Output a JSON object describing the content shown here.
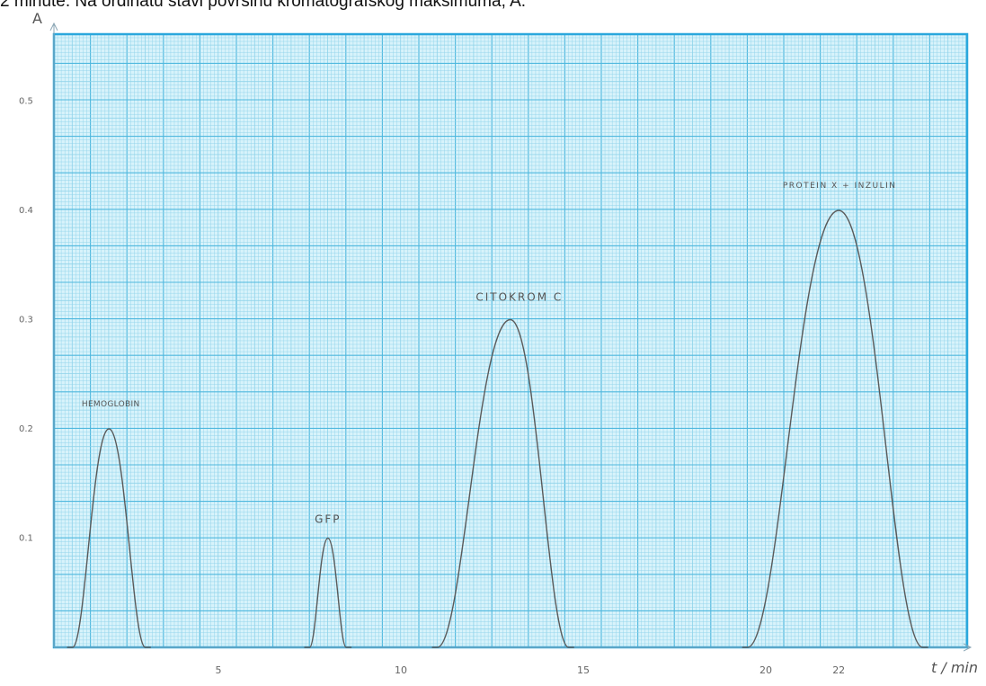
{
  "caption": "2 minute. Na ordinatu stavi površinu kromatografskog maksimuma, A.",
  "colors": {
    "paper": "#d8f3fb",
    "grid_minor": "#8fd3ea",
    "grid_major": "#4fb8de",
    "frame": "#2aa7dc",
    "curve": "#5a5a5a",
    "text": "#555555"
  },
  "chart_data": {
    "type": "line",
    "title": "",
    "xlabel": "t / min",
    "ylabel": "A",
    "xlim": [
      0,
      25
    ],
    "ylim": [
      0,
      0.6
    ],
    "grid": true,
    "x_ticks": [
      {
        "value": 5,
        "label": "5"
      },
      {
        "value": 10,
        "label": "10"
      },
      {
        "value": 15,
        "label": "15"
      },
      {
        "value": 20,
        "label": "20"
      },
      {
        "value": 22,
        "label": "22"
      }
    ],
    "y_ticks": [
      {
        "value": 0.1,
        "label": "0.1"
      },
      {
        "value": 0.2,
        "label": "0.2"
      },
      {
        "value": 0.3,
        "label": "0.3"
      },
      {
        "value": 0.4,
        "label": "0.4"
      },
      {
        "value": 0.5,
        "label": "0.5"
      }
    ],
    "peaks": [
      {
        "label": "HEMOGLOBIN",
        "start": 1.0,
        "apex": 2.0,
        "end": 3.0,
        "height": 0.2
      },
      {
        "label": "GFP",
        "start": 7.5,
        "apex": 8.0,
        "end": 8.5,
        "height": 0.1
      },
      {
        "label": "CITOKROM C",
        "start": 11.0,
        "apex": 13.0,
        "end": 14.6,
        "height": 0.3
      },
      {
        "label": "PROTEIN X + INZULIN",
        "start": 19.5,
        "apex": 22.0,
        "end": 24.3,
        "height": 0.4
      }
    ]
  }
}
